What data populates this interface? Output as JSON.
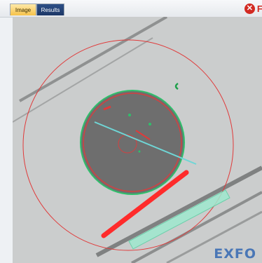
{
  "tabs": [
    {
      "label": "Image",
      "active": true
    },
    {
      "label": "Results",
      "active": false
    }
  ],
  "status": {
    "icon": "fail-x-icon",
    "label": "Fa"
  },
  "brand": "EXFO",
  "colors": {
    "fail": "#d22a22",
    "active_tab": "#f6c24a",
    "results_tab": "#1d3766",
    "zone_outline": "#e03a3a",
    "cladding_outline": "#2ec06b",
    "scratch_highlight": "#ff2b2b",
    "defect_highlight": "#7de3c0"
  }
}
